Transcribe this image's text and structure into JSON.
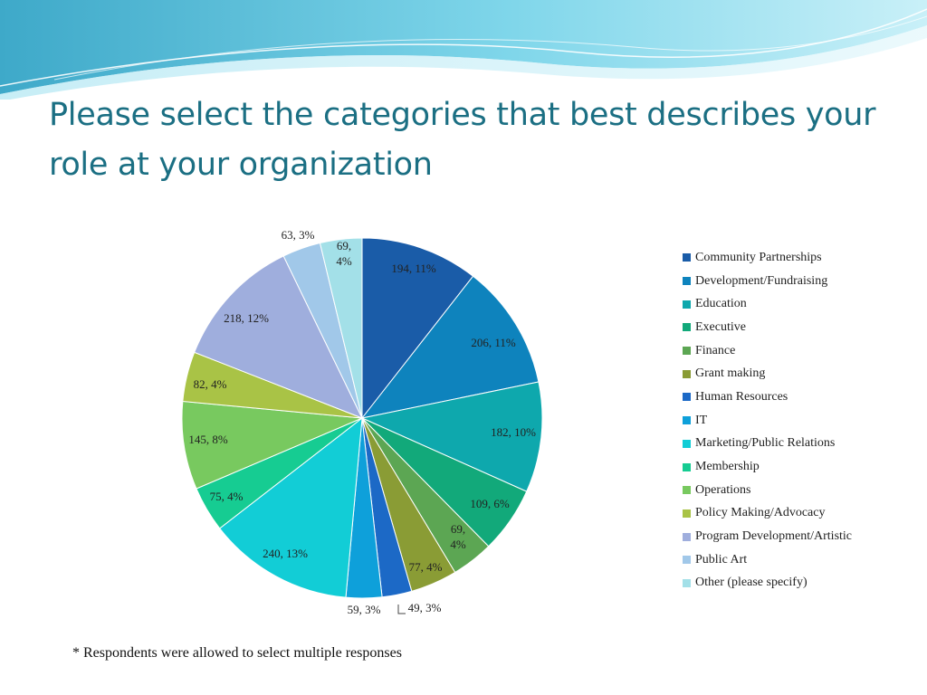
{
  "slide": {
    "title": "Please select the categories that best describes your role at your organization",
    "footnote": "* Respondents were allowed to select multiple responses"
  },
  "chart_data": {
    "type": "pie",
    "start_angle_deg": 0,
    "direction": "clockwise",
    "legend_position": "right",
    "slices": [
      {
        "label": "Community Partnerships",
        "value": 194,
        "percent": "11%",
        "data_label": "194, 11%",
        "color": "#1a5ca8"
      },
      {
        "label": "Development/Fundraising",
        "value": 206,
        "percent": "11%",
        "data_label": "206, 11%",
        "color": "#0e83bd"
      },
      {
        "label": "Education",
        "value": 182,
        "percent": "10%",
        "data_label": "182, 10%",
        "color": "#0ea8ad"
      },
      {
        "label": "Executive",
        "value": 109,
        "percent": "6%",
        "data_label": "109, 6%",
        "color": "#12a97a"
      },
      {
        "label": "Finance",
        "value": 69,
        "percent": "4%",
        "data_label": "69, 4%",
        "color": "#5ca653"
      },
      {
        "label": "Grant making",
        "value": 77,
        "percent": "4%",
        "data_label": "77, 4%",
        "color": "#8a9c35"
      },
      {
        "label": "Human Resources",
        "value": 49,
        "percent": "3%",
        "data_label": "49, 3%",
        "color": "#1c69c6"
      },
      {
        "label": "IT",
        "value": 59,
        "percent": "3%",
        "data_label": "59, 3%",
        "color": "#0ea0da"
      },
      {
        "label": "Marketing/Public Relations",
        "value": 240,
        "percent": "13%",
        "data_label": "240, 13%",
        "color": "#12cdd6"
      },
      {
        "label": "Membership",
        "value": 75,
        "percent": "4%",
        "data_label": "75, 4%",
        "color": "#16cc92"
      },
      {
        "label": "Operations",
        "value": 145,
        "percent": "8%",
        "data_label": "145, 8%",
        "color": "#78c95f"
      },
      {
        "label": "Policy Making/Advocacy",
        "value": 82,
        "percent": "4%",
        "data_label": "82, 4%",
        "color": "#a9c346"
      },
      {
        "label": "Program Development/Artistic",
        "value": 218,
        "percent": "12%",
        "data_label": "218, 12%",
        "color": "#9faedd"
      },
      {
        "label": "Public Art",
        "value": 63,
        "percent": "3%",
        "data_label": "63, 3%",
        "color": "#a1c8e9"
      },
      {
        "label": "Other (please specify)",
        "value": 69,
        "percent": "4%",
        "data_label": "69, 4%",
        "color": "#a3e0e8"
      }
    ]
  }
}
